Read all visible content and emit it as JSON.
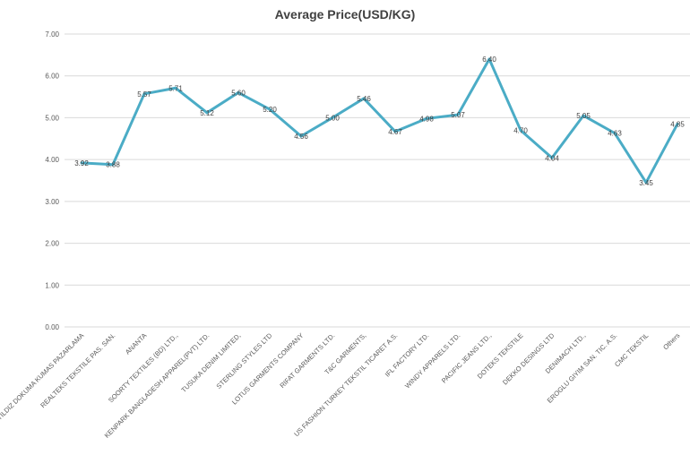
{
  "chart_data": {
    "type": "line",
    "title": "Average Price(USD/KG)",
    "xlabel": "",
    "ylabel": "",
    "ylim": [
      0,
      7
    ],
    "yticks": [
      "0.00",
      "1.00",
      "2.00",
      "3.00",
      "4.00",
      "5.00",
      "6.00",
      "7.00"
    ],
    "grid": true,
    "legend": "none",
    "line_color": "#4BACC6",
    "categories": [
      "YILDIZ DOKUMA KUMAS PAZARLAMA",
      "REALTEKS TEKSTILE PAS. SAN.",
      "ANANTA",
      "SOORTY TEXTILES (BD) LTD.,",
      "KENPARK BANGLADESH APPAREL(PVT) LTD.",
      "TUSUKA DENIM LIMITED,",
      "STERLING STYLES LTD",
      "LOTUS GARMENTS COMPANY",
      "RIFAT GARMENTS LTD.",
      "T&C GARMENTS,",
      "US FASHION TURKEY TEKSTIL TICARET A.S.",
      "IFL FACTORY LTD.",
      "WINDY APPARELS LTD.",
      "PACIFIC JEANS LTD.,",
      "DOTEKS TEKSTILE",
      "DEKKO DESINGS LTD",
      "DENIMACH LTD.,",
      "EROGLU GIYIM SAN. TIC. A.S.",
      "CMC TEKSTIL",
      "Others"
    ],
    "values": [
      3.92,
      3.88,
      5.57,
      5.71,
      5.12,
      5.6,
      5.2,
      4.56,
      5.0,
      5.46,
      4.67,
      4.98,
      5.07,
      6.4,
      4.7,
      4.04,
      5.05,
      4.63,
      3.45,
      4.85
    ],
    "data_labels": [
      "3.92",
      "3.88",
      "5.57",
      "5.71",
      "5.12",
      "5.60",
      "5.20",
      "4.56",
      "5.00",
      "5.46",
      "4.67",
      "4.98",
      "5.07",
      "6.40",
      "4.70",
      "4.04",
      "5.05",
      "4.63",
      "3.45",
      "4.85"
    ]
  }
}
